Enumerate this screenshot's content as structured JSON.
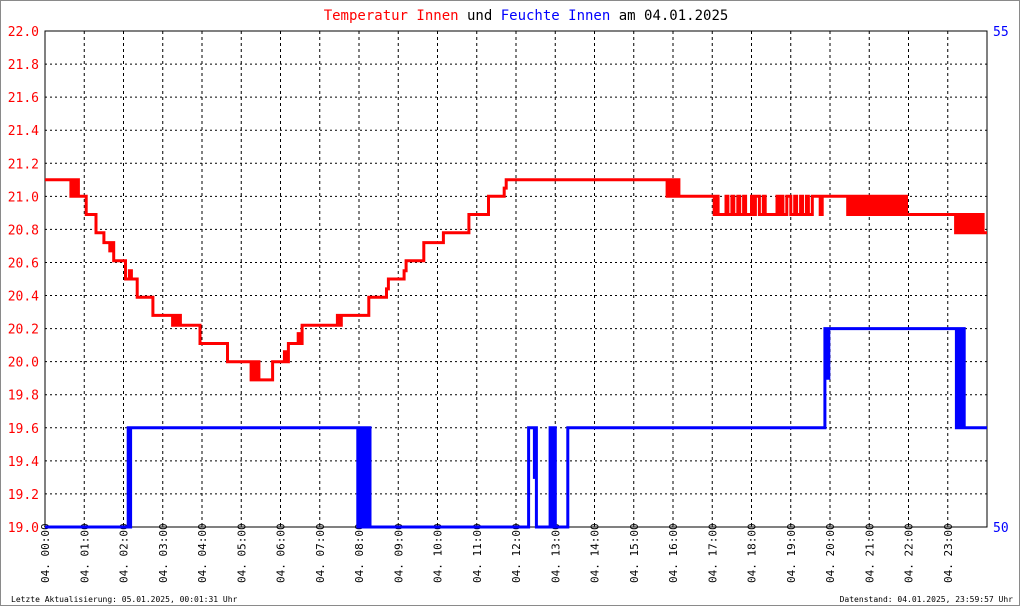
{
  "chart_data": {
    "type": "line",
    "title": {
      "part1": "Temperatur Innen",
      "part2": "und",
      "part3": "Feuchte Innen",
      "part4": "am 04.01.2025"
    },
    "colors": {
      "temperature": "#ff0000",
      "humidity": "#0000ff",
      "axis_left": "#ff0000",
      "axis_right": "#0000ff",
      "grid": "#000000"
    },
    "x_hours": [
      0,
      1,
      2,
      3,
      4,
      5,
      6,
      7,
      8,
      9,
      10,
      11,
      12,
      13,
      14,
      15,
      16,
      17,
      18,
      19,
      20,
      21,
      22,
      23
    ],
    "x_tick_labels": [
      "04. 00:00",
      "04. 01:00",
      "04. 02:00",
      "04. 03:00",
      "04. 04:00",
      "04. 05:00",
      "04. 06:00",
      "04. 07:00",
      "04. 08:00",
      "04. 09:00",
      "04. 10:00",
      "04. 11:00",
      "04. 12:00",
      "04. 13:00",
      "04. 14:00",
      "04. 15:00",
      "04. 16:00",
      "04. 17:00",
      "04. 18:00",
      "04. 19:00",
      "04. 20:00",
      "04. 21:00",
      "04. 22:00",
      "04. 23:00"
    ],
    "y_left": {
      "ylim": [
        19.0,
        22.0
      ],
      "ticks": [
        "19.0",
        "19.2",
        "19.4",
        "19.6",
        "19.8",
        "20.0",
        "20.2",
        "20.4",
        "20.6",
        "20.8",
        "21.0",
        "21.2",
        "21.4",
        "21.6",
        "21.8",
        "22.0"
      ]
    },
    "y_right": {
      "ylim": [
        50,
        55
      ],
      "ticks": [
        "50",
        "55"
      ]
    },
    "grid": true,
    "series": [
      {
        "name": "Temperatur Innen",
        "axis": "left",
        "points": [
          [
            0.0,
            21.1
          ],
          [
            0.65,
            21.1
          ],
          [
            0.66,
            21.0
          ],
          [
            0.7,
            21.1
          ],
          [
            0.75,
            21.0
          ],
          [
            0.8,
            21.1
          ],
          [
            0.85,
            21.0
          ],
          [
            1.0,
            21.0
          ],
          [
            1.05,
            20.89
          ],
          [
            1.25,
            20.89
          ],
          [
            1.3,
            20.78
          ],
          [
            1.45,
            20.78
          ],
          [
            1.5,
            20.72
          ],
          [
            1.6,
            20.72
          ],
          [
            1.65,
            20.67
          ],
          [
            1.7,
            20.72
          ],
          [
            1.75,
            20.61
          ],
          [
            2.0,
            20.61
          ],
          [
            2.05,
            20.5
          ],
          [
            2.15,
            20.55
          ],
          [
            2.2,
            20.5
          ],
          [
            2.3,
            20.5
          ],
          [
            2.35,
            20.39
          ],
          [
            2.7,
            20.39
          ],
          [
            2.75,
            20.28
          ],
          [
            3.2,
            20.28
          ],
          [
            3.25,
            20.22
          ],
          [
            3.3,
            20.28
          ],
          [
            3.35,
            20.22
          ],
          [
            3.4,
            20.28
          ],
          [
            3.45,
            20.22
          ],
          [
            3.9,
            20.22
          ],
          [
            3.95,
            20.11
          ],
          [
            4.6,
            20.11
          ],
          [
            4.65,
            20.0
          ],
          [
            5.2,
            20.0
          ],
          [
            5.25,
            19.89
          ],
          [
            5.3,
            20.0
          ],
          [
            5.35,
            19.89
          ],
          [
            5.4,
            20.0
          ],
          [
            5.45,
            19.89
          ],
          [
            5.75,
            19.89
          ],
          [
            5.8,
            20.0
          ],
          [
            6.05,
            20.0
          ],
          [
            6.1,
            20.06
          ],
          [
            6.15,
            20.0
          ],
          [
            6.2,
            20.11
          ],
          [
            6.4,
            20.11
          ],
          [
            6.45,
            20.17
          ],
          [
            6.5,
            20.11
          ],
          [
            6.55,
            20.22
          ],
          [
            7.4,
            20.22
          ],
          [
            7.45,
            20.28
          ],
          [
            7.5,
            20.22
          ],
          [
            7.55,
            20.28
          ],
          [
            8.2,
            20.28
          ],
          [
            8.25,
            20.39
          ],
          [
            8.65,
            20.39
          ],
          [
            8.7,
            20.44
          ],
          [
            8.75,
            20.5
          ],
          [
            9.1,
            20.5
          ],
          [
            9.15,
            20.55
          ],
          [
            9.2,
            20.61
          ],
          [
            9.6,
            20.61
          ],
          [
            9.65,
            20.72
          ],
          [
            10.1,
            20.72
          ],
          [
            10.15,
            20.78
          ],
          [
            10.75,
            20.78
          ],
          [
            10.8,
            20.89
          ],
          [
            11.25,
            20.89
          ],
          [
            11.3,
            21.0
          ],
          [
            11.65,
            21.0
          ],
          [
            11.7,
            21.05
          ],
          [
            11.75,
            21.1
          ],
          [
            15.8,
            21.1
          ],
          [
            15.85,
            21.0
          ],
          [
            15.9,
            21.1
          ],
          [
            15.95,
            21.0
          ],
          [
            16.0,
            21.1
          ],
          [
            16.05,
            21.0
          ],
          [
            16.1,
            21.1
          ],
          [
            16.15,
            21.0
          ],
          [
            16.2,
            21.0
          ],
          [
            17.0,
            21.0
          ],
          [
            17.05,
            20.89
          ],
          [
            17.1,
            21.0
          ],
          [
            17.15,
            20.89
          ],
          [
            17.3,
            20.89
          ],
          [
            17.35,
            21.0
          ],
          [
            17.4,
            20.89
          ],
          [
            17.5,
            21.0
          ],
          [
            17.55,
            20.89
          ],
          [
            17.65,
            21.0
          ],
          [
            17.7,
            20.89
          ],
          [
            17.8,
            21.0
          ],
          [
            17.85,
            20.89
          ],
          [
            18.0,
            21.0
          ],
          [
            18.05,
            20.89
          ],
          [
            18.1,
            21.0
          ],
          [
            18.2,
            20.89
          ],
          [
            18.3,
            21.0
          ],
          [
            18.35,
            20.89
          ],
          [
            18.6,
            20.89
          ],
          [
            18.65,
            21.0
          ],
          [
            18.7,
            20.89
          ],
          [
            18.75,
            21.0
          ],
          [
            18.8,
            20.89
          ],
          [
            18.9,
            21.0
          ],
          [
            19.0,
            20.89
          ],
          [
            19.1,
            21.0
          ],
          [
            19.15,
            20.89
          ],
          [
            19.25,
            21.0
          ],
          [
            19.3,
            20.89
          ],
          [
            19.4,
            21.0
          ],
          [
            19.45,
            20.89
          ],
          [
            19.55,
            21.0
          ],
          [
            19.7,
            21.0
          ],
          [
            19.75,
            20.89
          ],
          [
            19.8,
            21.0
          ],
          [
            20.4,
            21.0
          ],
          [
            20.45,
            20.89
          ],
          [
            20.5,
            21.0
          ],
          [
            20.55,
            20.89
          ],
          [
            20.6,
            21.0
          ],
          [
            20.65,
            20.89
          ],
          [
            20.7,
            21.0
          ],
          [
            20.75,
            20.89
          ],
          [
            20.8,
            21.0
          ],
          [
            20.85,
            20.89
          ],
          [
            20.9,
            21.0
          ],
          [
            20.95,
            20.89
          ],
          [
            21.0,
            21.0
          ],
          [
            21.05,
            20.89
          ],
          [
            21.1,
            21.0
          ],
          [
            21.15,
            20.89
          ],
          [
            21.2,
            21.0
          ],
          [
            21.25,
            20.89
          ],
          [
            21.3,
            21.0
          ],
          [
            21.35,
            20.89
          ],
          [
            21.4,
            21.0
          ],
          [
            21.45,
            20.89
          ],
          [
            21.5,
            21.0
          ],
          [
            21.55,
            20.89
          ],
          [
            21.6,
            21.0
          ],
          [
            21.65,
            20.89
          ],
          [
            21.7,
            21.0
          ],
          [
            21.75,
            20.89
          ],
          [
            21.8,
            21.0
          ],
          [
            21.85,
            20.89
          ],
          [
            21.9,
            21.0
          ],
          [
            21.95,
            20.89
          ],
          [
            22.0,
            20.89
          ],
          [
            23.15,
            20.89
          ],
          [
            23.2,
            20.78
          ],
          [
            23.25,
            20.89
          ],
          [
            23.3,
            20.78
          ],
          [
            23.35,
            20.89
          ],
          [
            23.4,
            20.78
          ],
          [
            23.45,
            20.89
          ],
          [
            23.5,
            20.78
          ],
          [
            23.55,
            20.89
          ],
          [
            23.6,
            20.78
          ],
          [
            23.65,
            20.89
          ],
          [
            23.7,
            20.78
          ],
          [
            23.75,
            20.89
          ],
          [
            23.8,
            20.78
          ],
          [
            23.85,
            20.89
          ],
          [
            23.9,
            20.78
          ],
          [
            24.0,
            20.78
          ]
        ]
      },
      {
        "name": "Feuchte Innen",
        "axis": "right",
        "points": [
          [
            0.0,
            50.0
          ],
          [
            2.1,
            50.0
          ],
          [
            2.12,
            51.0
          ],
          [
            2.15,
            50.0
          ],
          [
            2.18,
            51.0
          ],
          [
            2.2,
            51.0
          ],
          [
            7.95,
            51.0
          ],
          [
            7.97,
            50.0
          ],
          [
            8.0,
            51.0
          ],
          [
            8.02,
            50.0
          ],
          [
            8.05,
            51.0
          ],
          [
            8.07,
            50.0
          ],
          [
            8.1,
            51.0
          ],
          [
            8.12,
            50.0
          ],
          [
            8.15,
            51.0
          ],
          [
            8.17,
            50.0
          ],
          [
            8.2,
            51.0
          ],
          [
            8.22,
            50.0
          ],
          [
            8.25,
            51.0
          ],
          [
            8.28,
            50.0
          ],
          [
            12.3,
            50.0
          ],
          [
            12.32,
            51.0
          ],
          [
            12.45,
            51.0
          ],
          [
            12.47,
            50.5
          ],
          [
            12.5,
            51.0
          ],
          [
            12.52,
            50.0
          ],
          [
            12.85,
            50.0
          ],
          [
            12.87,
            51.0
          ],
          [
            12.9,
            50.0
          ],
          [
            12.92,
            51.0
          ],
          [
            12.95,
            50.0
          ],
          [
            12.97,
            51.0
          ],
          [
            13.0,
            50.0
          ],
          [
            13.3,
            50.0
          ],
          [
            13.32,
            51.0
          ],
          [
            19.85,
            51.0
          ],
          [
            19.87,
            52.0
          ],
          [
            19.9,
            51.5
          ],
          [
            19.92,
            52.0
          ],
          [
            19.95,
            51.5
          ],
          [
            19.97,
            52.0
          ],
          [
            23.2,
            52.0
          ],
          [
            23.22,
            51.0
          ],
          [
            23.25,
            52.0
          ],
          [
            23.27,
            51.0
          ],
          [
            23.3,
            52.0
          ],
          [
            23.32,
            51.0
          ],
          [
            23.35,
            52.0
          ],
          [
            23.37,
            51.0
          ],
          [
            23.4,
            52.0
          ],
          [
            23.42,
            51.0
          ],
          [
            24.0,
            51.0
          ]
        ]
      }
    ]
  },
  "footer": {
    "left": "Letzte Aktualisierung: 05.01.2025, 00:01:31 Uhr",
    "right": "Datenstand: 04.01.2025, 23:59:57 Uhr"
  }
}
